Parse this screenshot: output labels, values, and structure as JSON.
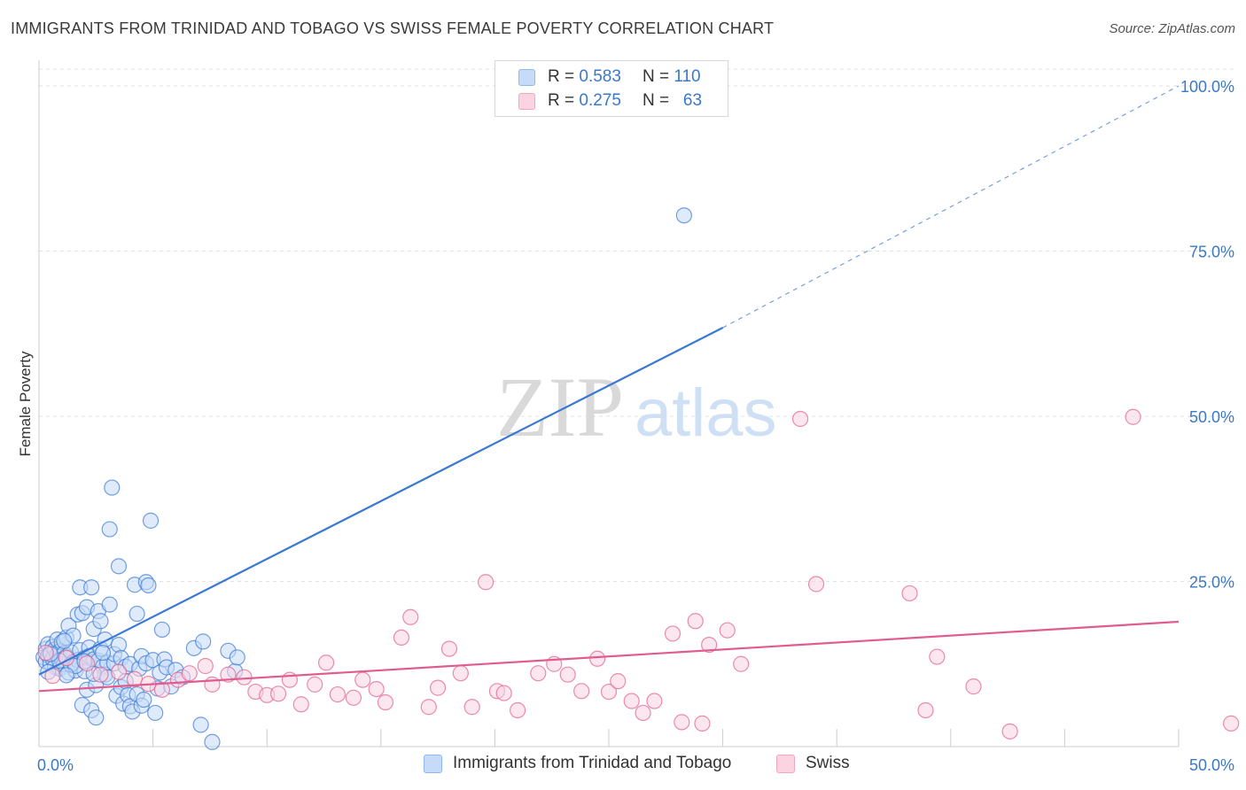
{
  "title": "IMMIGRANTS FROM TRINIDAD AND TOBAGO VS SWISS FEMALE POVERTY CORRELATION CHART",
  "source": "Source: ZipAtlas.com",
  "watermark": {
    "zip": "ZIP",
    "atlas": "atlas"
  },
  "legend": {
    "rows": [
      {
        "r_label": "R =",
        "r_value": "0.583",
        "n_label": "N =",
        "n_value": "110",
        "color": "#8fb8ee",
        "fill": "#c5dbf7"
      },
      {
        "r_label": "R =",
        "r_value": "0.275",
        "n_label": "N =",
        "n_value": "63",
        "color": "#f2a6c0",
        "fill": "#fbd3e1"
      }
    ]
  },
  "bottom_legend": [
    {
      "label": "Immigrants from Trinidad and Tobago",
      "color": "#8fb8ee",
      "fill": "#c5dbf7"
    },
    {
      "label": "Swiss",
      "color": "#f2a6c0",
      "fill": "#fbd3e1"
    }
  ],
  "chart_data": {
    "type": "scatter",
    "title": "IMMIGRANTS FROM TRINIDAD AND TOBAGO VS SWISS FEMALE POVERTY CORRELATION CHART",
    "xlabel": "",
    "ylabel": "Female Poverty",
    "xlim": [
      0,
      50
    ],
    "ylim": [
      0,
      100
    ],
    "x_tick_labels": [
      "0.0%",
      "50.0%"
    ],
    "y_tick_labels": [
      "25.0%",
      "50.0%",
      "75.0%",
      "100.0%"
    ],
    "y_ticks": [
      25,
      50,
      75,
      100
    ],
    "grid": true,
    "legend_position": "top-center",
    "series": [
      {
        "name": "Immigrants from Trinidad and Tobago",
        "color": "#3a78d4",
        "marker_fill": "#c5dbf7",
        "trend": {
          "x0": 0,
          "y0": 10.9,
          "x1": 30,
          "y1": 63.4,
          "dashed_to_x": 50,
          "dashed_to_y": 100
        },
        "points": [
          [
            0.2,
            13.5
          ],
          [
            0.3,
            14.8
          ],
          [
            0.3,
            12.9
          ],
          [
            0.4,
            15.5
          ],
          [
            0.4,
            13.8
          ],
          [
            0.5,
            14.2
          ],
          [
            0.5,
            12.6
          ],
          [
            0.6,
            15.1
          ],
          [
            0.6,
            13.3
          ],
          [
            0.7,
            14.7
          ],
          [
            0.7,
            12.1
          ],
          [
            0.8,
            16.2
          ],
          [
            0.8,
            13.9
          ],
          [
            0.9,
            14.4
          ],
          [
            0.9,
            11.8
          ],
          [
            1.0,
            15.8
          ],
          [
            1.0,
            13.2
          ],
          [
            1.1,
            14.1
          ],
          [
            1.1,
            12.5
          ],
          [
            1.2,
            16.5
          ],
          [
            1.2,
            13.6
          ],
          [
            1.3,
            11.2
          ],
          [
            1.3,
            18.3
          ],
          [
            1.4,
            14.3
          ],
          [
            1.5,
            16.8
          ],
          [
            1.5,
            12.8
          ],
          [
            1.6,
            11.5
          ],
          [
            1.7,
            13.1
          ],
          [
            1.7,
            20.0
          ],
          [
            1.8,
            24.1
          ],
          [
            1.8,
            14.6
          ],
          [
            1.9,
            20.2
          ],
          [
            1.9,
            6.3
          ],
          [
            2.0,
            13.4
          ],
          [
            2.0,
            11.4
          ],
          [
            2.1,
            8.6
          ],
          [
            2.1,
            21.1
          ],
          [
            2.2,
            15.0
          ],
          [
            2.2,
            13.7
          ],
          [
            2.3,
            5.5
          ],
          [
            2.3,
            24.1
          ],
          [
            2.4,
            17.8
          ],
          [
            2.4,
            13.2
          ],
          [
            2.5,
            9.3
          ],
          [
            2.5,
            4.4
          ],
          [
            2.6,
            20.5
          ],
          [
            2.6,
            13.0
          ],
          [
            2.7,
            19.0
          ],
          [
            2.7,
            14.8
          ],
          [
            2.8,
            12.1
          ],
          [
            2.9,
            16.2
          ],
          [
            2.9,
            10.9
          ],
          [
            3.0,
            12.7
          ],
          [
            3.1,
            32.9
          ],
          [
            3.1,
            21.5
          ],
          [
            3.2,
            39.2
          ],
          [
            3.3,
            12.6
          ],
          [
            3.3,
            14.0
          ],
          [
            3.4,
            7.7
          ],
          [
            3.5,
            27.3
          ],
          [
            3.5,
            15.4
          ],
          [
            3.6,
            9.0
          ],
          [
            3.6,
            13.4
          ],
          [
            3.7,
            6.5
          ],
          [
            3.8,
            12.1
          ],
          [
            3.8,
            9.9
          ],
          [
            3.9,
            7.8
          ],
          [
            4.0,
            6.1
          ],
          [
            4.0,
            12.5
          ],
          [
            4.1,
            5.3
          ],
          [
            4.2,
            24.5
          ],
          [
            4.3,
            7.9
          ],
          [
            4.3,
            20.1
          ],
          [
            4.4,
            11.8
          ],
          [
            4.5,
            6.2
          ],
          [
            4.5,
            13.7
          ],
          [
            4.6,
            7.1
          ],
          [
            4.7,
            12.6
          ],
          [
            4.7,
            24.9
          ],
          [
            4.8,
            24.4
          ],
          [
            4.9,
            34.2
          ],
          [
            5.0,
            13.1
          ],
          [
            5.1,
            5.1
          ],
          [
            5.2,
            8.8
          ],
          [
            5.3,
            11.2
          ],
          [
            5.4,
            17.7
          ],
          [
            5.5,
            13.2
          ],
          [
            5.6,
            12.0
          ],
          [
            5.8,
            9.1
          ],
          [
            6.0,
            11.6
          ],
          [
            6.3,
            10.5
          ],
          [
            6.8,
            14.9
          ],
          [
            7.1,
            3.3
          ],
          [
            7.2,
            15.9
          ],
          [
            7.6,
            0.7
          ],
          [
            8.3,
            14.5
          ],
          [
            8.6,
            11.4
          ],
          [
            8.7,
            13.5
          ],
          [
            28.3,
            80.4
          ],
          [
            0.4,
            11.3
          ],
          [
            0.9,
            13.0
          ],
          [
            1.4,
            12.4
          ],
          [
            2.4,
            11.0
          ],
          [
            1.6,
            12.2
          ],
          [
            3.0,
            10.5
          ],
          [
            1.2,
            10.8
          ],
          [
            0.5,
            14.0
          ],
          [
            2.8,
            14.2
          ],
          [
            1.1,
            16.0
          ],
          [
            2.0,
            12.9
          ]
        ]
      },
      {
        "name": "Swiss",
        "color": "#e05c8f",
        "marker_fill": "#fbd3e1",
        "trend": {
          "x0": 0,
          "y0": 8.4,
          "x1": 50,
          "y1": 18.9
        },
        "points": [
          [
            0.3,
            14.2
          ],
          [
            0.6,
            10.7
          ],
          [
            1.2,
            13.4
          ],
          [
            2.1,
            12.6
          ],
          [
            2.7,
            10.9
          ],
          [
            3.5,
            11.3
          ],
          [
            4.2,
            10.2
          ],
          [
            4.8,
            9.5
          ],
          [
            5.4,
            8.6
          ],
          [
            6.1,
            10.1
          ],
          [
            6.6,
            11.1
          ],
          [
            7.3,
            12.2
          ],
          [
            7.6,
            9.4
          ],
          [
            8.3,
            10.9
          ],
          [
            9.0,
            10.5
          ],
          [
            9.5,
            8.3
          ],
          [
            10.0,
            7.8
          ],
          [
            10.5,
            8.0
          ],
          [
            11.0,
            10.1
          ],
          [
            11.5,
            6.4
          ],
          [
            12.1,
            9.4
          ],
          [
            12.6,
            12.7
          ],
          [
            13.1,
            7.9
          ],
          [
            13.8,
            7.4
          ],
          [
            14.2,
            10.1
          ],
          [
            14.8,
            8.7
          ],
          [
            15.2,
            6.7
          ],
          [
            15.9,
            16.5
          ],
          [
            16.3,
            19.6
          ],
          [
            17.1,
            6.0
          ],
          [
            17.5,
            8.9
          ],
          [
            18.0,
            14.8
          ],
          [
            18.5,
            11.1
          ],
          [
            19.0,
            6.0
          ],
          [
            19.6,
            24.9
          ],
          [
            20.1,
            8.4
          ],
          [
            20.4,
            8.1
          ],
          [
            21.0,
            5.5
          ],
          [
            21.9,
            11.1
          ],
          [
            22.6,
            12.5
          ],
          [
            23.2,
            10.9
          ],
          [
            23.8,
            8.4
          ],
          [
            24.5,
            13.3
          ],
          [
            25.0,
            8.3
          ],
          [
            25.4,
            9.9
          ],
          [
            26.0,
            6.9
          ],
          [
            26.5,
            5.1
          ],
          [
            27.0,
            6.9
          ],
          [
            27.8,
            17.1
          ],
          [
            28.2,
            3.7
          ],
          [
            28.8,
            19.0
          ],
          [
            29.1,
            3.5
          ],
          [
            29.4,
            15.4
          ],
          [
            30.2,
            17.6
          ],
          [
            30.8,
            12.5
          ],
          [
            33.4,
            49.6
          ],
          [
            34.1,
            24.6
          ],
          [
            38.2,
            23.2
          ],
          [
            38.9,
            5.5
          ],
          [
            39.4,
            13.6
          ],
          [
            41.0,
            9.1
          ],
          [
            42.6,
            2.3
          ],
          [
            48.0,
            49.9
          ],
          [
            52.3,
            3.5
          ]
        ]
      }
    ]
  }
}
